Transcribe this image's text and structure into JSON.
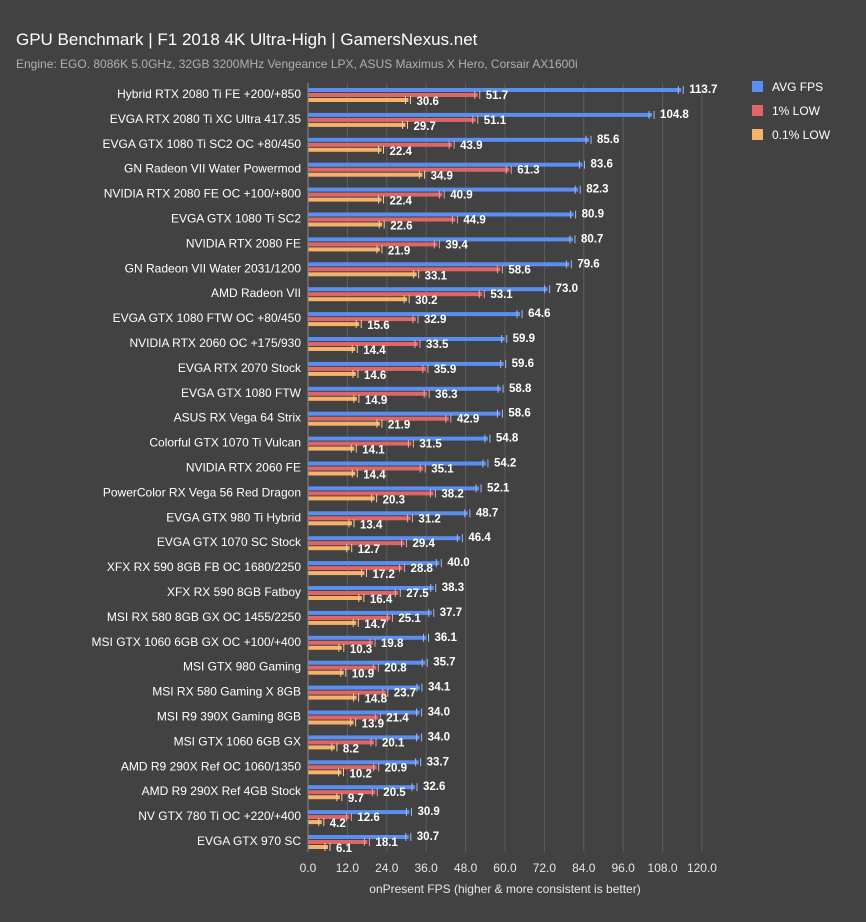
{
  "header": {
    "title": "GPU Benchmark | F1 2018 4K Ultra-High | GamersNexus.net",
    "subtitle": "Engine: EGO. 8086K 5.0GHz, 32GB 3200MHz Vengeance LPX, ASUS Maximus X Hero, Corsair AX1600i"
  },
  "legend": [
    {
      "label": "AVG FPS",
      "color": "#5a8ef0"
    },
    {
      "label": "1% LOW",
      "color": "#e06666"
    },
    {
      "label": "0.1% LOW",
      "color": "#f6b26b"
    }
  ],
  "chart_data": {
    "type": "bar",
    "orientation": "horizontal",
    "title": "GPU Benchmark | F1 2018 4K Ultra-High | GamersNexus.net",
    "subtitle": "Engine: EGO. 8086K 5.0GHz, 32GB 3200MHz Vengeance LPX, ASUS Maximus X Hero, Corsair AX1600i",
    "xlabel": "onPresent FPS (higher & more consistent is better)",
    "ylabel": "",
    "xlim": [
      0,
      120
    ],
    "xticks": [
      "0.0",
      "12.0",
      "24.0",
      "36.0",
      "48.0",
      "60.0",
      "72.0",
      "84.0",
      "96.0",
      "108.0",
      "120.0"
    ],
    "grid": true,
    "legend_position": "top-right",
    "categories": [
      "Hybrid RTX 2080 Ti FE +200/+850",
      "EVGA RTX 2080 Ti XC Ultra 417.35",
      "EVGA GTX 1080 Ti SC2 OC +80/450",
      "GN Radeon VII Water Powermod",
      "NVIDIA RTX 2080 FE OC +100/+800",
      "EVGA GTX 1080 Ti SC2",
      "NVIDIA RTX 2080 FE",
      "GN Radeon VII Water 2031/1200",
      "AMD Radeon VII",
      "EVGA GTX 1080 FTW OC +80/450",
      "NVIDIA RTX 2060 OC +175/930",
      "EVGA RTX 2070 Stock",
      "EVGA GTX 1080 FTW",
      "ASUS RX Vega 64 Strix",
      "Colorful GTX 1070 Ti Vulcan",
      "NVIDIA RTX 2060 FE",
      "PowerColor RX Vega 56 Red Dragon",
      "EVGA GTX 980 Ti Hybrid",
      "EVGA GTX 1070 SC Stock",
      "XFX RX 590 8GB FB OC 1680/2250",
      "XFX RX 590 8GB Fatboy",
      "MSI RX 580 8GB GX OC 1455/2250",
      "MSI GTX 1060 6GB GX OC +100/+400",
      "MSI GTX 980 Gaming",
      "MSI RX 580 Gaming X 8GB",
      "MSI R9 390X Gaming 8GB",
      "MSI GTX 1060 6GB GX",
      "AMD R9 290X Ref OC 1060/1350",
      "AMD R9 290X Ref 4GB Stock",
      "NV GTX 780 Ti OC +220/+400",
      "EVGA GTX 970 SC"
    ],
    "series": [
      {
        "name": "AVG FPS",
        "color": "#5a8ef0",
        "values": [
          113.7,
          104.8,
          85.6,
          83.6,
          82.3,
          80.9,
          80.7,
          79.6,
          73.0,
          64.6,
          59.9,
          59.6,
          58.8,
          58.6,
          54.8,
          54.2,
          52.1,
          48.7,
          46.4,
          40.0,
          38.3,
          37.7,
          36.1,
          35.7,
          34.1,
          34.0,
          34.0,
          33.7,
          32.6,
          30.9,
          30.7
        ]
      },
      {
        "name": "1% LOW",
        "color": "#e06666",
        "values": [
          51.7,
          51.1,
          43.9,
          61.3,
          40.9,
          44.9,
          39.4,
          58.6,
          53.1,
          32.9,
          33.5,
          35.9,
          36.3,
          42.9,
          31.5,
          35.1,
          38.2,
          31.2,
          29.4,
          28.8,
          27.5,
          25.1,
          19.8,
          20.8,
          23.7,
          21.4,
          20.1,
          20.9,
          20.5,
          12.6,
          18.1
        ]
      },
      {
        "name": "0.1% LOW",
        "color": "#f6b26b",
        "values": [
          30.6,
          29.7,
          22.4,
          34.9,
          22.4,
          22.6,
          21.9,
          33.1,
          30.2,
          15.6,
          14.4,
          14.6,
          14.9,
          21.9,
          14.1,
          14.4,
          20.3,
          13.4,
          12.7,
          17.2,
          16.4,
          14.7,
          10.3,
          10.9,
          14.8,
          13.9,
          8.2,
          10.2,
          9.7,
          4.2,
          6.1
        ]
      }
    ]
  }
}
